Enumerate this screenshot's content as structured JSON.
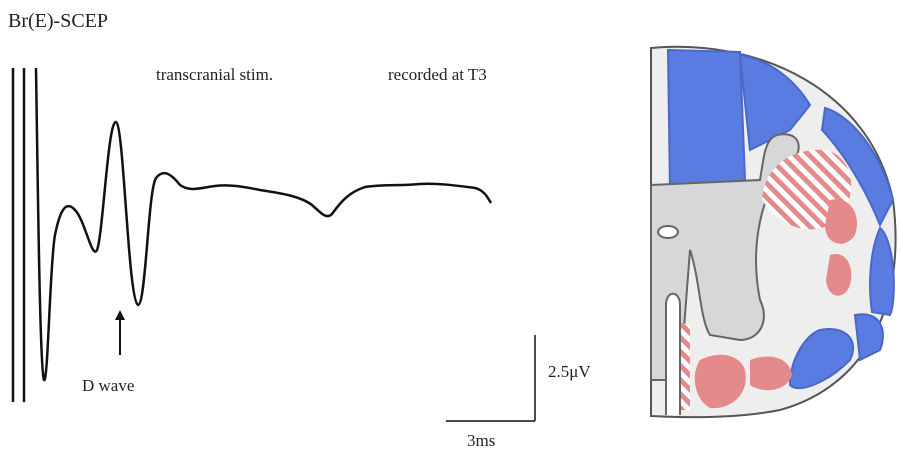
{
  "title": "Br(E)-SCEP",
  "labels": {
    "stimulation": "transcranial stim.",
    "recording": "recorded at T3",
    "d_wave": "D wave"
  },
  "scale_bar": {
    "amplitude": "2.5μV",
    "time": "3ms"
  }
}
